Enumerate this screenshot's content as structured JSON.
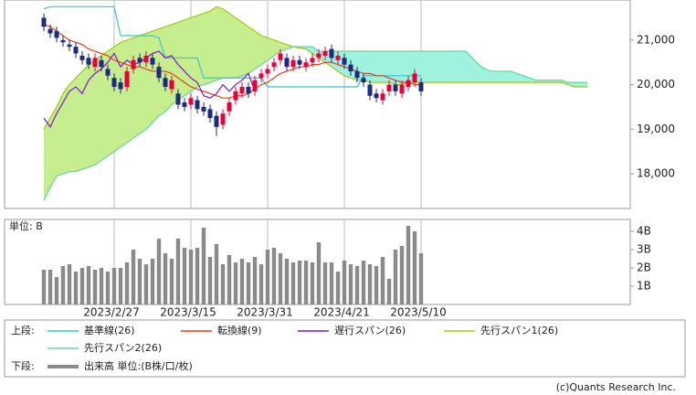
{
  "chart_data": [
    {
      "type": "ichimoku",
      "legend_label": "上段:",
      "categories": [
        null,
        null,
        null,
        null,
        null,
        null,
        null,
        null,
        null,
        null,
        null,
        "2023/2/27",
        null,
        null,
        null,
        null,
        null,
        null,
        null,
        null,
        null,
        null,
        null,
        "2023/3/15",
        null,
        null,
        null,
        null,
        null,
        null,
        null,
        null,
        null,
        null,
        null,
        "2023/3/31",
        null,
        null,
        null,
        null,
        null,
        null,
        null,
        null,
        null,
        null,
        null,
        "2023/4/21",
        null,
        null,
        null,
        null,
        null,
        null,
        null,
        null,
        null,
        null,
        null,
        "2023/5/10",
        null,
        null,
        null,
        null,
        null,
        null,
        null,
        null,
        null,
        null,
        null,
        null,
        null,
        null,
        null,
        null,
        null,
        null,
        null,
        null,
        null,
        null,
        null,
        null,
        null,
        null
      ],
      "ylim": [
        17220,
        21900
      ],
      "yticks": [
        {
          "value": 18000,
          "label": "18,000"
        },
        {
          "value": 19000,
          "label": "19,000"
        },
        {
          "value": 20000,
          "label": "20,000"
        },
        {
          "value": 21000,
          "label": "21,000"
        }
      ],
      "candles": {
        "up_color": "#e8003a",
        "down_color": "#1c2a80",
        "open": [
          21500,
          21250,
          21200,
          21000,
          20900,
          20850,
          20650,
          20600,
          20400,
          20550,
          20350,
          20150,
          20050,
          19950,
          20350,
          20600,
          20500,
          20600,
          20400,
          20150,
          19900,
          19800,
          19600,
          19550,
          19650,
          19500,
          19450,
          19300,
          19100,
          19400,
          19650,
          19800,
          19950,
          19850,
          20150,
          20250,
          20400,
          20550,
          20600,
          20400,
          20550,
          20400,
          20500,
          20600,
          20650,
          20800,
          20550,
          20600,
          20450,
          20300,
          20150,
          20000,
          19800,
          19650,
          19850,
          20000,
          19800,
          19950,
          20050,
          20050,
          null,
          null,
          null,
          null,
          null,
          null,
          null,
          null,
          null,
          null,
          null,
          null,
          null,
          null,
          null,
          null,
          null,
          null,
          null,
          null,
          null,
          null,
          null,
          null,
          null,
          null
        ],
        "high": [
          21600,
          21350,
          21300,
          21100,
          21000,
          20950,
          20750,
          20700,
          20700,
          20650,
          20450,
          20250,
          20150,
          20400,
          20650,
          20700,
          20750,
          20700,
          20500,
          20250,
          20200,
          19900,
          19700,
          19800,
          19750,
          19600,
          19550,
          19400,
          19450,
          19700,
          19950,
          20050,
          20050,
          20200,
          20350,
          20450,
          20600,
          20800,
          20700,
          20650,
          20650,
          20600,
          20700,
          20800,
          20850,
          20900,
          20750,
          20700,
          20550,
          20400,
          20250,
          20100,
          19900,
          19900,
          20100,
          20100,
          20100,
          20200,
          20350,
          20150,
          null,
          null,
          null,
          null,
          null,
          null,
          null,
          null,
          null,
          null,
          null,
          null,
          null,
          null,
          null,
          null,
          null,
          null,
          null,
          null,
          null,
          null,
          null,
          null,
          null,
          null
        ],
        "low": [
          21200,
          21050,
          20950,
          20850,
          20750,
          20600,
          20450,
          20350,
          20300,
          20300,
          20100,
          19850,
          19800,
          19850,
          20250,
          20400,
          20400,
          20350,
          20050,
          19850,
          19800,
          19450,
          19400,
          19450,
          19350,
          19300,
          19150,
          18850,
          19000,
          19300,
          19550,
          19700,
          19700,
          19750,
          20050,
          20150,
          20300,
          20450,
          20300,
          20300,
          20350,
          20300,
          20400,
          20500,
          20550,
          20500,
          20450,
          20350,
          20200,
          20050,
          19950,
          19650,
          19600,
          19550,
          19750,
          19750,
          19700,
          19850,
          19950,
          19750,
          null,
          null,
          null,
          null,
          null,
          null,
          null,
          null,
          null,
          null,
          null,
          null,
          null,
          null,
          null,
          null,
          null,
          null,
          null,
          null,
          null,
          null,
          null,
          null,
          null,
          null
        ],
        "close": [
          21300,
          21150,
          21050,
          20950,
          20850,
          20700,
          20550,
          20450,
          20600,
          20400,
          20200,
          19950,
          19900,
          20300,
          20550,
          20500,
          20650,
          20450,
          20150,
          19950,
          20100,
          19550,
          19500,
          19700,
          19450,
          19400,
          19250,
          19050,
          19350,
          19600,
          19850,
          19950,
          19800,
          20100,
          20250,
          20350,
          20500,
          20700,
          20400,
          20550,
          20450,
          20500,
          20600,
          20700,
          20750,
          20600,
          20650,
          20450,
          20300,
          20150,
          20050,
          19750,
          19700,
          19800,
          20000,
          19850,
          20000,
          20100,
          20250,
          19850,
          null,
          null,
          null,
          null,
          null,
          null,
          null,
          null,
          null,
          null,
          null,
          null,
          null,
          null,
          null,
          null,
          null,
          null,
          null,
          null,
          null,
          null,
          null,
          null,
          null,
          null
        ]
      },
      "cloud_up_color": "#c6ee8e",
      "cloud_down_color": "#9ff2de",
      "series": [
        {
          "name": "基準線(26)",
          "color": "#33c9cc",
          "values": [
            21700,
            21750,
            21750,
            21750,
            21750,
            21750,
            21750,
            21750,
            21750,
            21750,
            21750,
            21750,
            21100,
            21100,
            21100,
            21100,
            21100,
            21100,
            21050,
            20600,
            20600,
            20600,
            20600,
            20600,
            20600,
            20150,
            20150,
            20150,
            20150,
            20150,
            20150,
            20150,
            20150,
            20150,
            20150,
            19950,
            19950,
            19950,
            19950,
            19950,
            19950,
            19950,
            19950,
            19950,
            19950,
            19950,
            19950,
            19950,
            19950,
            19950,
            20200,
            20200,
            20200,
            20200,
            20200,
            20200,
            20200,
            20200,
            20200,
            20200,
            null,
            null,
            null,
            null,
            null,
            null,
            null,
            null,
            null,
            null,
            null,
            null,
            null,
            null,
            null,
            null,
            null,
            null,
            null,
            null,
            null,
            null,
            null,
            null,
            null,
            null
          ]
        },
        {
          "name": "転換線(9)",
          "color": "#e0401c",
          "values": [
            21350,
            21300,
            21200,
            21100,
            21000,
            20950,
            20900,
            20800,
            20750,
            20700,
            20650,
            20550,
            20500,
            20450,
            20400,
            20400,
            20350,
            20300,
            20300,
            20300,
            20250,
            20150,
            20050,
            19950,
            19900,
            19850,
            19800,
            19750,
            19700,
            19700,
            19750,
            19750,
            19800,
            19900,
            20000,
            20050,
            20150,
            20250,
            20300,
            20350,
            20400,
            20400,
            20450,
            20450,
            20500,
            20500,
            20450,
            20400,
            20350,
            20300,
            20250,
            20250,
            20200,
            20200,
            20150,
            20100,
            20050,
            20050,
            20000,
            20000,
            null,
            null,
            null,
            null,
            null,
            null,
            null,
            null,
            null,
            null,
            null,
            null,
            null,
            null,
            null,
            null,
            null,
            null,
            null,
            null,
            null,
            null,
            null,
            null,
            null,
            null
          ]
        },
        {
          "name": "遅行スパン(26)",
          "color": "#7a1cc8",
          "values": [
            19250,
            19050,
            19350,
            19600,
            19850,
            19950,
            19800,
            20100,
            20250,
            20350,
            20500,
            20700,
            20400,
            20550,
            20450,
            20500,
            20600,
            20700,
            20750,
            20600,
            20650,
            20450,
            20300,
            20150,
            20050,
            19750,
            19700,
            19800,
            20000,
            19850,
            20000,
            20100,
            20250,
            19850,
            null,
            null,
            null,
            null,
            null,
            null,
            null,
            null,
            null,
            null,
            null,
            null,
            null,
            null,
            null,
            null,
            null,
            null,
            null,
            null,
            null,
            null,
            null,
            null,
            null,
            null,
            null,
            null,
            null,
            null,
            null,
            null,
            null,
            null,
            null,
            null,
            null,
            null,
            null,
            null,
            null,
            null,
            null,
            null,
            null,
            null,
            null,
            null,
            null,
            null,
            null,
            null
          ]
        },
        {
          "name": "先行スパン1(26)",
          "color": "#a4c814",
          "values": [
            19000,
            19250,
            19500,
            19800,
            20000,
            20150,
            20300,
            20450,
            20550,
            20650,
            20750,
            20850,
            20950,
            21000,
            21050,
            21100,
            21150,
            21200,
            21250,
            21300,
            21350,
            21400,
            21450,
            21500,
            21550,
            21600,
            21650,
            21750,
            21700,
            21600,
            21500,
            21400,
            21300,
            21200,
            21100,
            21050,
            21000,
            20950,
            20900,
            20850,
            20820,
            20800,
            20700,
            20600,
            20500,
            20400,
            20300,
            20200,
            20150,
            20100,
            20100,
            20050,
            20050,
            20050,
            20050,
            20000,
            20000,
            20050,
            20050,
            20050,
            20050,
            20050,
            20050,
            20050,
            20050,
            20050,
            20050,
            20050,
            20050,
            20050,
            20050,
            20050,
            20050,
            20050,
            20050,
            20050,
            20050,
            20050,
            20050,
            20050,
            20050,
            20050,
            20000,
            19950,
            19950,
            19950
          ]
        },
        {
          "name": "先行スパン2(26)",
          "color": "#5fd99a",
          "values": [
            17400,
            17700,
            17950,
            18000,
            18050,
            18050,
            18100,
            18150,
            18200,
            18300,
            18400,
            18500,
            18600,
            18700,
            18800,
            18900,
            19000,
            19150,
            19300,
            19400,
            19550,
            19650,
            19750,
            19850,
            19950,
            20000,
            20050,
            20100,
            20150,
            20150,
            20150,
            20200,
            20250,
            20350,
            20450,
            20550,
            20650,
            20750,
            20800,
            20850,
            20850,
            20850,
            20850,
            20750,
            20750,
            20750,
            20750,
            20750,
            20750,
            20750,
            20750,
            20750,
            20750,
            20750,
            20750,
            20750,
            20750,
            20750,
            20750,
            20750,
            20750,
            20750,
            20750,
            20750,
            20750,
            20750,
            20750,
            20600,
            20450,
            20350,
            20300,
            20300,
            20300,
            20300,
            20250,
            20200,
            20150,
            20100,
            20100,
            20100,
            20100,
            20100,
            20050,
            20050,
            20050,
            20050
          ]
        }
      ]
    },
    {
      "type": "bar",
      "legend_label": "下段:",
      "name": "出来高 単位:(B株/口/枚)",
      "unit_label": "単位: B",
      "color": "#8a8a8a",
      "ylim": [
        0,
        4.65
      ],
      "yticks": [
        {
          "value": 1,
          "label": "1B"
        },
        {
          "value": 2,
          "label": "2B"
        },
        {
          "value": 3,
          "label": "3B"
        },
        {
          "value": 4,
          "label": "4B"
        }
      ],
      "values": [
        1.9,
        1.9,
        1.5,
        2.1,
        2.2,
        1.8,
        2.0,
        2.1,
        1.9,
        2.0,
        1.8,
        2.0,
        2.0,
        2.3,
        3.0,
        2.5,
        2.2,
        2.5,
        3.6,
        2.8,
        2.5,
        3.6,
        3.1,
        3.0,
        3.1,
        4.2,
        2.6,
        3.3,
        2.2,
        2.7,
        2.3,
        2.5,
        2.3,
        2.6,
        2.2,
        3.0,
        3.1,
        2.8,
        2.5,
        2.3,
        2.4,
        2.4,
        2.3,
        3.4,
        2.3,
        2.3,
        1.8,
        2.4,
        2.2,
        2.1,
        2.4,
        2.2,
        2.1,
        2.6,
        1.4,
        3.0,
        3.2,
        4.3,
        4.0,
        2.8,
        null,
        null,
        null,
        null,
        null,
        null,
        null,
        null,
        null,
        null,
        null,
        null,
        null,
        null,
        null,
        null,
        null,
        null,
        null,
        null,
        null,
        null,
        null,
        null,
        null,
        null
      ]
    }
  ],
  "credit": "(c)Quants Research Inc."
}
